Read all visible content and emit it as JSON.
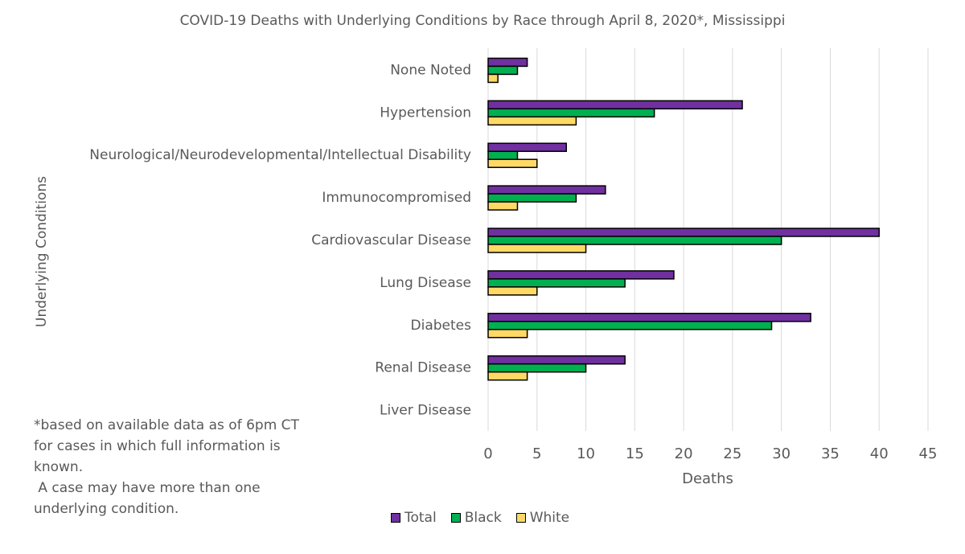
{
  "chart_data": {
    "type": "bar",
    "orientation": "horizontal",
    "title": "COVID-19 Deaths with Underlying Conditions by Race through April 8, 2020*, Mississippi",
    "xlabel": "Deaths",
    "ylabel": "Underlying Conditions",
    "xlim": [
      0,
      45
    ],
    "xticks": [
      0,
      5,
      10,
      15,
      20,
      25,
      30,
      35,
      40,
      45
    ],
    "grid": "vertical",
    "categories": [
      "None Noted",
      "Hypertension",
      "Neurological/Neurodevelopmental/Intellectual Disability",
      "Immunocompromised",
      "Cardiovascular Disease",
      "Lung Disease",
      "Diabetes",
      "Renal Disease",
      "Liver Disease"
    ],
    "series": [
      {
        "name": "Total",
        "color": "#7030A0",
        "values": [
          4,
          26,
          8,
          12,
          40,
          19,
          33,
          14,
          0
        ]
      },
      {
        "name": "Black",
        "color": "#00B050",
        "values": [
          3,
          17,
          3,
          9,
          30,
          14,
          29,
          10,
          0
        ]
      },
      {
        "name": "White",
        "color": "#FFD966",
        "values": [
          1,
          9,
          5,
          3,
          10,
          5,
          4,
          4,
          0
        ]
      }
    ],
    "legend_position": "bottom"
  },
  "footnote": [
    "*based on available data as of 6pm CT",
    "for cases in which full information is",
    "known.",
    " A case may have more than one",
    "underlying condition."
  ]
}
